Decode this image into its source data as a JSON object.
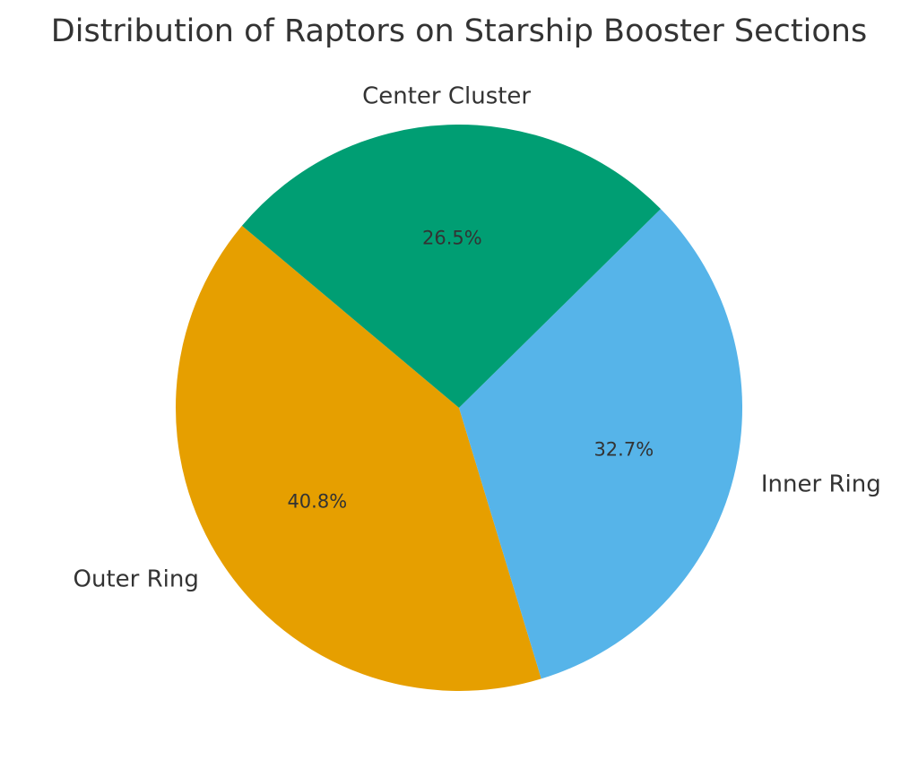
{
  "chart_data": {
    "type": "pie",
    "title": "Distribution of Raptors on Starship Booster Sections",
    "categories": [
      "Outer Ring",
      "Inner Ring",
      "Center Cluster"
    ],
    "values": [
      40.8,
      32.7,
      26.5
    ],
    "percent_labels": [
      "40.8%",
      "32.7%",
      "26.5%"
    ],
    "colors": [
      "#E69F00",
      "#56B4E9",
      "#009E73"
    ],
    "start_angle_deg": 140,
    "direction": "counterclockwise",
    "legend": "none"
  }
}
